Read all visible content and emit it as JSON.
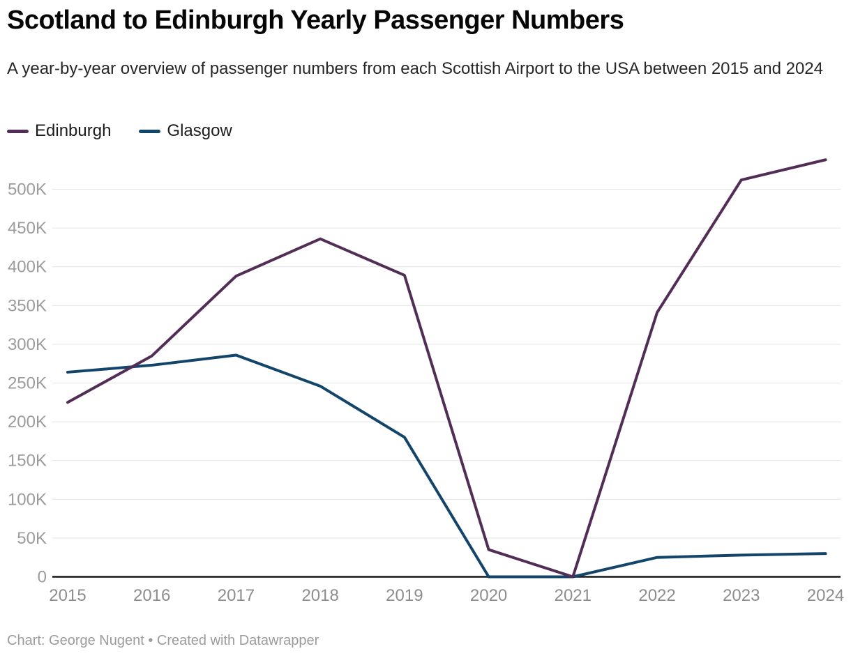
{
  "header": {
    "title": "Scotland to Edinburgh Yearly Passenger Numbers",
    "subtitle": "A year-by-year overview of passenger numbers from each Scottish Airport to the USA between 2015 and 2024"
  },
  "footer": {
    "text": "Chart: George Nugent • Created with Datawrapper"
  },
  "colors": {
    "edinburgh": "#522d56",
    "glasgow": "#13456b",
    "gridline": "#e4e4e4",
    "axis": "#181818"
  },
  "chart_data": {
    "type": "line",
    "title": "Scotland to Edinburgh Yearly Passenger Numbers",
    "xlabel": "",
    "ylabel": "",
    "x": [
      2015,
      2016,
      2017,
      2018,
      2019,
      2020,
      2021,
      2022,
      2023,
      2024
    ],
    "x_labels": [
      "2015",
      "2016",
      "2017",
      "2018",
      "2019",
      "2020",
      "2021",
      "2022",
      "2023",
      "2024"
    ],
    "series": [
      {
        "name": "Edinburgh",
        "color": "#522d56",
        "values": [
          225000,
          285000,
          388000,
          436000,
          389000,
          35000,
          0,
          341000,
          512000,
          538000
        ]
      },
      {
        "name": "Glasgow",
        "color": "#13456b",
        "values": [
          264000,
          273000,
          286000,
          246000,
          180000,
          0,
          0,
          25000,
          28000,
          30000
        ]
      }
    ],
    "ylim": [
      0,
      550000
    ],
    "yticks": {
      "values": [
        0,
        50000,
        100000,
        150000,
        200000,
        250000,
        300000,
        350000,
        400000,
        450000,
        500000
      ],
      "labels": [
        "0",
        "50K",
        "100K",
        "150K",
        "200K",
        "250K",
        "300K",
        "350K",
        "400K",
        "450K",
        "500K"
      ]
    },
    "grid": true,
    "legend_position": "top-left"
  }
}
